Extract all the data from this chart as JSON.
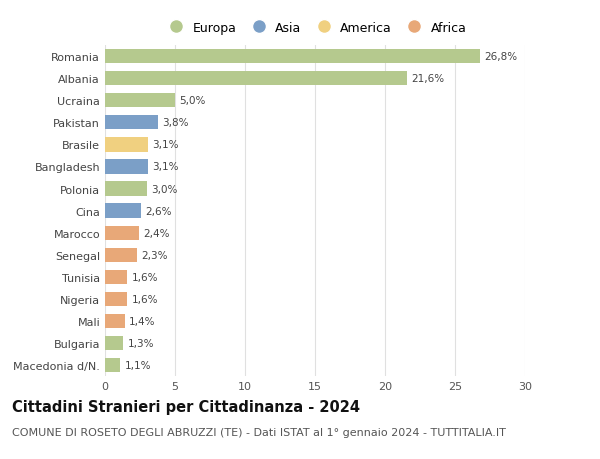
{
  "countries": [
    "Romania",
    "Albania",
    "Ucraina",
    "Pakistan",
    "Brasile",
    "Bangladesh",
    "Polonia",
    "Cina",
    "Marocco",
    "Senegal",
    "Tunisia",
    "Nigeria",
    "Mali",
    "Bulgaria",
    "Macedonia d/N."
  ],
  "values": [
    26.8,
    21.6,
    5.0,
    3.8,
    3.1,
    3.1,
    3.0,
    2.6,
    2.4,
    2.3,
    1.6,
    1.6,
    1.4,
    1.3,
    1.1
  ],
  "labels": [
    "26,8%",
    "21,6%",
    "5,0%",
    "3,8%",
    "3,1%",
    "3,1%",
    "3,0%",
    "2,6%",
    "2,4%",
    "2,3%",
    "1,6%",
    "1,6%",
    "1,4%",
    "1,3%",
    "1,1%"
  ],
  "continents": [
    "Europa",
    "Europa",
    "Europa",
    "Asia",
    "America",
    "Asia",
    "Europa",
    "Asia",
    "Africa",
    "Africa",
    "Africa",
    "Africa",
    "Africa",
    "Europa",
    "Europa"
  ],
  "continent_colors": {
    "Europa": "#b5c98e",
    "Asia": "#7b9fc7",
    "America": "#f0d080",
    "Africa": "#e8a878"
  },
  "legend_order": [
    "Europa",
    "Asia",
    "America",
    "Africa"
  ],
  "title": "Cittadini Stranieri per Cittadinanza - 2024",
  "subtitle": "COMUNE DI ROSETO DEGLI ABRUZZI (TE) - Dati ISTAT al 1° gennaio 2024 - TUTTITALIA.IT",
  "xlim": [
    0,
    30
  ],
  "xticks": [
    0,
    5,
    10,
    15,
    20,
    25,
    30
  ],
  "background_color": "#ffffff",
  "grid_color": "#e0e0e0",
  "bar_height": 0.65,
  "title_fontsize": 10.5,
  "subtitle_fontsize": 8,
  "label_fontsize": 7.5,
  "tick_fontsize": 8,
  "legend_fontsize": 9
}
